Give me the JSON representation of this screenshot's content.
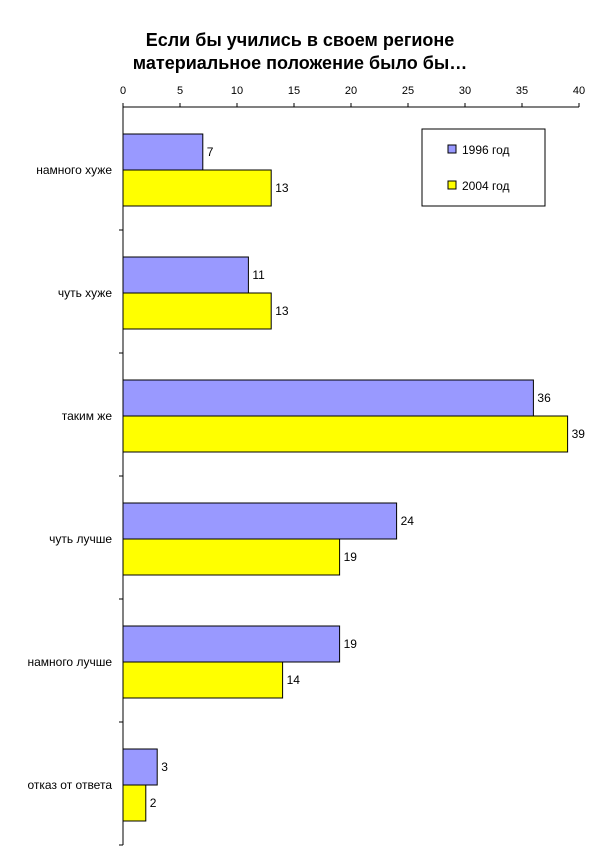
{
  "chart_data": {
    "type": "bar",
    "orientation": "horizontal",
    "title_lines": [
      "Если бы учились в своем регионе",
      "материальное положение было бы…"
    ],
    "xlabel": "",
    "ylabel": "",
    "xlim": [
      0,
      40
    ],
    "x_ticks": [
      0,
      5,
      10,
      15,
      20,
      25,
      30,
      35,
      40
    ],
    "x_axis_position": "top",
    "grid": false,
    "legend_position": "top-right",
    "categories": [
      "намного хуже",
      "чуть хуже",
      "таким же",
      "чуть лучше",
      "намного лучше",
      "отказ от ответа"
    ],
    "series": [
      {
        "name": "1996 год",
        "color": "#9999ff",
        "values": [
          7,
          11,
          36,
          24,
          19,
          3
        ]
      },
      {
        "name": "2004 год",
        "color": "#ffff00",
        "values": [
          13,
          13,
          39,
          19,
          14,
          2
        ]
      }
    ]
  }
}
